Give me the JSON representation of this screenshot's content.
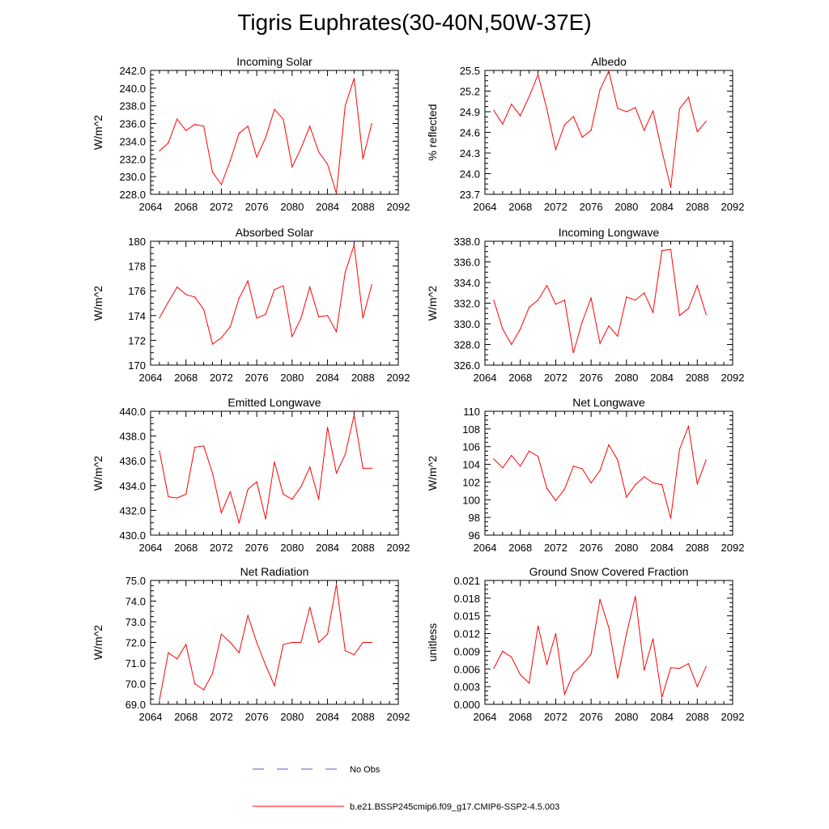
{
  "title": "Tigris Euphrates(30-40N,50W-37E)",
  "colors": {
    "series": "#ff0000",
    "obs": "#5555cc",
    "axis": "#000000"
  },
  "legend": {
    "entries": [
      {
        "label": "No Obs",
        "style": "dashed",
        "color": "#5555cc"
      },
      {
        "label": "b.e21.BSSP245cmip6.f09_g17.CMIP6-SSP2-4.5.003",
        "style": "solid",
        "color": "#ff0000"
      }
    ]
  },
  "chart_data": [
    {
      "type": "line",
      "title": "Incoming Solar",
      "ylabel": "W/m^2",
      "xlim": [
        2064,
        2092
      ],
      "xticks": [
        2064,
        2068,
        2072,
        2076,
        2080,
        2084,
        2088,
        2092
      ],
      "ylim": [
        228,
        242
      ],
      "yticks": [
        "228.0",
        "230.0",
        "232.0",
        "234.0",
        "236.0",
        "238.0",
        "240.0",
        "242.0"
      ],
      "x": [
        2065,
        2066,
        2067,
        2068,
        2069,
        2070,
        2071,
        2072,
        2073,
        2074,
        2075,
        2076,
        2077,
        2078,
        2079,
        2080,
        2081,
        2082,
        2083,
        2084,
        2085,
        2086,
        2087,
        2088,
        2089
      ],
      "values": [
        232.9,
        233.8,
        236.5,
        235.2,
        235.9,
        235.7,
        230.5,
        229.1,
        231.8,
        234.9,
        235.7,
        232.2,
        234.4,
        237.6,
        236.5,
        231.1,
        233.2,
        235.7,
        232.8,
        231.4,
        228.1,
        238.0,
        241.1,
        232.0,
        236.0
      ]
    },
    {
      "type": "line",
      "title": "Albedo",
      "ylabel": "% reflected",
      "xlim": [
        2064,
        2092
      ],
      "xticks": [
        2064,
        2068,
        2072,
        2076,
        2080,
        2084,
        2088,
        2092
      ],
      "ylim": [
        23.7,
        25.5
      ],
      "yticks": [
        "23.7",
        "24.0",
        "24.3",
        "24.6",
        "24.9",
        "25.2",
        "25.5"
      ],
      "x": [
        2065,
        2066,
        2067,
        2068,
        2069,
        2070,
        2071,
        2072,
        2073,
        2074,
        2075,
        2076,
        2077,
        2078,
        2079,
        2080,
        2081,
        2082,
        2083,
        2084,
        2085,
        2086,
        2087,
        2088,
        2089
      ],
      "values": [
        24.92,
        24.72,
        25.01,
        24.84,
        25.12,
        25.44,
        24.94,
        24.35,
        24.71,
        24.83,
        24.53,
        24.63,
        25.22,
        25.49,
        24.95,
        24.9,
        24.96,
        24.63,
        24.91,
        24.33,
        23.8,
        24.94,
        25.11,
        24.61,
        24.76
      ]
    },
    {
      "type": "line",
      "title": "Absorbed Solar",
      "ylabel": "W/m^2",
      "xlim": [
        2064,
        2092
      ],
      "xticks": [
        2064,
        2068,
        2072,
        2076,
        2080,
        2084,
        2088,
        2092
      ],
      "ylim": [
        170,
        180
      ],
      "yticks": [
        "170",
        "172",
        "174",
        "176",
        "178",
        "180"
      ],
      "x": [
        2065,
        2066,
        2067,
        2068,
        2069,
        2070,
        2071,
        2072,
        2073,
        2074,
        2075,
        2076,
        2077,
        2078,
        2079,
        2080,
        2081,
        2082,
        2083,
        2084,
        2085,
        2086,
        2087,
        2088,
        2089
      ],
      "values": [
        173.8,
        175.1,
        176.3,
        175.7,
        175.5,
        174.5,
        171.7,
        172.2,
        173.1,
        175.4,
        176.8,
        173.8,
        174.1,
        176.1,
        176.4,
        172.3,
        173.8,
        176.3,
        173.9,
        174.0,
        172.7,
        177.5,
        179.7,
        173.8,
        176.5
      ]
    },
    {
      "type": "line",
      "title": "Incoming Longwave",
      "ylabel": "W/m^2",
      "xlim": [
        2064,
        2092
      ],
      "xticks": [
        2064,
        2068,
        2072,
        2076,
        2080,
        2084,
        2088,
        2092
      ],
      "ylim": [
        326,
        338
      ],
      "yticks": [
        "326.0",
        "328.0",
        "330.0",
        "332.0",
        "334.0",
        "336.0",
        "338.0"
      ],
      "x": [
        2065,
        2066,
        2067,
        2068,
        2069,
        2070,
        2071,
        2072,
        2073,
        2074,
        2075,
        2076,
        2077,
        2078,
        2079,
        2080,
        2081,
        2082,
        2083,
        2084,
        2085,
        2086,
        2087,
        2088,
        2089
      ],
      "values": [
        332.3,
        329.5,
        328.0,
        329.5,
        331.6,
        332.3,
        333.7,
        331.9,
        332.3,
        327.2,
        330.2,
        332.5,
        328.1,
        329.8,
        328.8,
        332.6,
        332.3,
        333.0,
        331.1,
        337.1,
        337.2,
        330.8,
        331.5,
        333.7,
        330.9
      ]
    },
    {
      "type": "line",
      "title": "Emitted Longwave",
      "ylabel": "W/m^2",
      "xlim": [
        2064,
        2092
      ],
      "xticks": [
        2064,
        2068,
        2072,
        2076,
        2080,
        2084,
        2088,
        2092
      ],
      "ylim": [
        430,
        440
      ],
      "yticks": [
        "430.0",
        "432.0",
        "434.0",
        "436.0",
        "438.0",
        "440.0"
      ],
      "x": [
        2065,
        2066,
        2067,
        2068,
        2069,
        2070,
        2071,
        2072,
        2073,
        2074,
        2075,
        2076,
        2077,
        2078,
        2079,
        2080,
        2081,
        2082,
        2083,
        2084,
        2085,
        2086,
        2087,
        2088,
        2089
      ],
      "values": [
        436.8,
        433.1,
        433.0,
        433.3,
        437.1,
        437.2,
        435.0,
        431.8,
        433.5,
        431.0,
        433.7,
        434.3,
        431.3,
        435.9,
        433.3,
        432.9,
        433.9,
        435.5,
        432.9,
        438.7,
        435.0,
        436.5,
        439.7,
        435.4,
        435.4
      ]
    },
    {
      "type": "line",
      "title": "Net Longwave",
      "ylabel": "W/m^2",
      "xlim": [
        2064,
        2092
      ],
      "xticks": [
        2064,
        2068,
        2072,
        2076,
        2080,
        2084,
        2088,
        2092
      ],
      "ylim": [
        96,
        110
      ],
      "yticks": [
        "96",
        "98",
        "100",
        "102",
        "104",
        "106",
        "108",
        "110"
      ],
      "x": [
        2065,
        2066,
        2067,
        2068,
        2069,
        2070,
        2071,
        2072,
        2073,
        2074,
        2075,
        2076,
        2077,
        2078,
        2079,
        2080,
        2081,
        2082,
        2083,
        2084,
        2085,
        2086,
        2087,
        2088,
        2089
      ],
      "values": [
        104.6,
        103.6,
        105.0,
        103.8,
        105.5,
        104.9,
        101.3,
        99.9,
        101.2,
        103.8,
        103.5,
        101.9,
        103.3,
        106.2,
        104.5,
        100.3,
        101.7,
        102.6,
        101.9,
        101.7,
        97.9,
        105.7,
        108.3,
        101.8,
        104.5
      ]
    },
    {
      "type": "line",
      "title": "Net Radiation",
      "ylabel": "W/m^2",
      "xlim": [
        2064,
        2092
      ],
      "xticks": [
        2064,
        2068,
        2072,
        2076,
        2080,
        2084,
        2088,
        2092
      ],
      "ylim": [
        69,
        75
      ],
      "yticks": [
        "69.0",
        "70.0",
        "71.0",
        "72.0",
        "73.0",
        "74.0",
        "75.0"
      ],
      "x": [
        2065,
        2066,
        2067,
        2068,
        2069,
        2070,
        2071,
        2072,
        2073,
        2074,
        2075,
        2076,
        2077,
        2078,
        2079,
        2080,
        2081,
        2082,
        2083,
        2084,
        2085,
        2086,
        2087,
        2088,
        2089
      ],
      "values": [
        69.2,
        71.5,
        71.2,
        71.9,
        70.0,
        69.7,
        70.5,
        72.4,
        72.0,
        71.5,
        73.3,
        72.0,
        70.9,
        69.9,
        71.9,
        72.0,
        72.0,
        73.7,
        72.0,
        72.4,
        74.8,
        71.6,
        71.4,
        72.0,
        72.0
      ]
    },
    {
      "type": "line",
      "title": "Ground Snow Covered Fraction",
      "ylabel": "unitless",
      "xlim": [
        2064,
        2092
      ],
      "xticks": [
        2064,
        2068,
        2072,
        2076,
        2080,
        2084,
        2088,
        2092
      ],
      "ylim": [
        0,
        0.021
      ],
      "yticks": [
        "0.000",
        "0.003",
        "0.006",
        "0.009",
        "0.012",
        "0.015",
        "0.018",
        "0.021"
      ],
      "x": [
        2065,
        2066,
        2067,
        2068,
        2069,
        2070,
        2071,
        2072,
        2073,
        2074,
        2075,
        2076,
        2077,
        2078,
        2079,
        2080,
        2081,
        2082,
        2083,
        2084,
        2085,
        2086,
        2087,
        2088,
        2089
      ],
      "values": [
        0.0061,
        0.009,
        0.008,
        0.005,
        0.0036,
        0.0133,
        0.0068,
        0.012,
        0.0017,
        0.0053,
        0.0067,
        0.0085,
        0.0178,
        0.013,
        0.0044,
        0.012,
        0.0183,
        0.0058,
        0.0111,
        0.0012,
        0.0062,
        0.0061,
        0.0069,
        0.003,
        0.0064
      ]
    }
  ]
}
